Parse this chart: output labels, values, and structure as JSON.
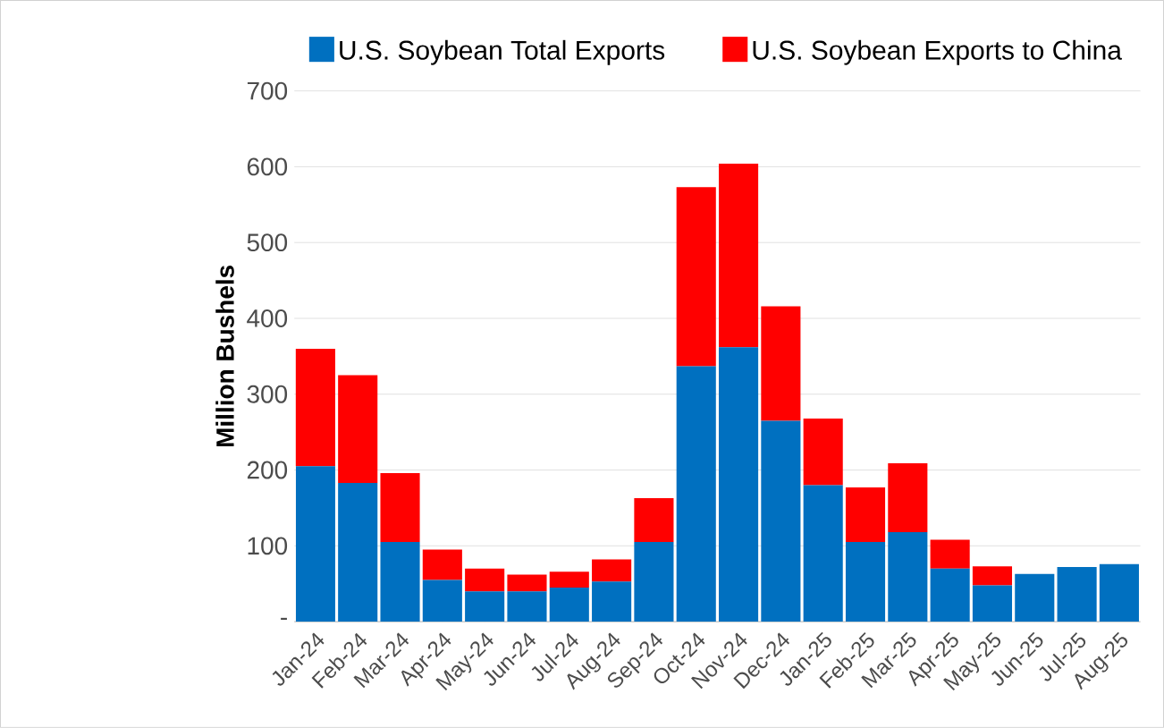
{
  "chart_data": {
    "type": "bar",
    "stacked": true,
    "ylabel": "Million Bushels",
    "categories": [
      "Jan-24",
      "Feb-24",
      "Mar-24",
      "Apr-24",
      "May-24",
      "Jun-24",
      "Jul-24",
      "Aug-24",
      "Sep-24",
      "Oct-24",
      "Nov-24",
      "Dec-24",
      "Jan-25",
      "Feb-25",
      "Mar-25",
      "Apr-25",
      "May-25",
      "Jun-25",
      "Jul-25",
      "Aug-25"
    ],
    "series": [
      {
        "name": "U.S. Soybean Total Exports",
        "color": "#0070c0",
        "values": [
          205,
          183,
          105,
          55,
          40,
          40,
          45,
          53,
          105,
          337,
          362,
          265,
          180,
          105,
          118,
          70,
          48,
          63,
          72,
          76
        ]
      },
      {
        "name": "U.S. Soybean Exports to China",
        "color": "#ff0000",
        "values": [
          155,
          142,
          91,
          40,
          30,
          22,
          21,
          29,
          58,
          236,
          242,
          151,
          88,
          72,
          91,
          38,
          25,
          null,
          null,
          null
        ]
      }
    ],
    "ylim": [
      0,
      700
    ],
    "yticks": [
      {
        "value": 0,
        "label": "-"
      },
      100,
      200,
      300,
      400,
      500,
      600,
      700
    ],
    "grid": "y",
    "legend": "top"
  }
}
